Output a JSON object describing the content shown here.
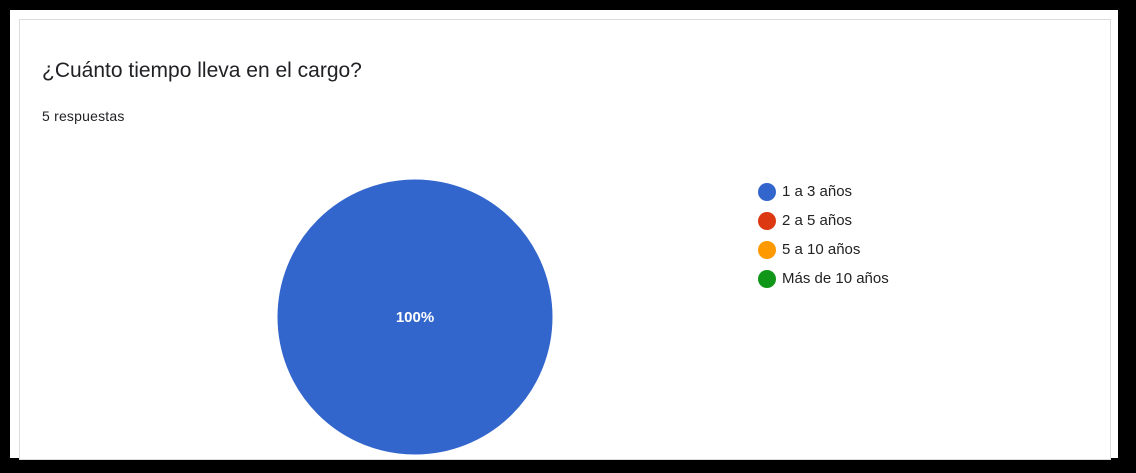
{
  "header": {
    "title": "¿Cuánto tiempo lleva en el cargo?",
    "responses": "5 respuestas"
  },
  "chart_data": {
    "type": "pie",
    "categories": [
      "1 a 3 años",
      "2 a 5 años",
      "5 a 10 años",
      "Más de 10 años"
    ],
    "values": [
      100,
      0,
      0,
      0
    ],
    "labels": [
      "100%",
      "",
      "",
      ""
    ],
    "colors": [
      "#3366cc",
      "#dc3912",
      "#ff9900",
      "#109618"
    ],
    "label_color": "#ffffff",
    "legend": "right"
  }
}
